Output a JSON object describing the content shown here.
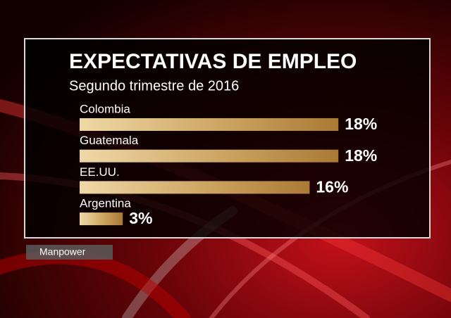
{
  "chart_data": {
    "type": "bar",
    "orientation": "horizontal",
    "title": "EXPECTATIVAS DE EMPLEO",
    "subtitle": "Segundo trimestre de 2016",
    "categories": [
      "Colombia",
      "Guatemala",
      "EE.UU.",
      "Argentina"
    ],
    "values": [
      18,
      18,
      16,
      3
    ],
    "value_labels": [
      "18%",
      "18%",
      "16%",
      "3%"
    ],
    "color": "#c9a05c",
    "source": "Manpower"
  }
}
